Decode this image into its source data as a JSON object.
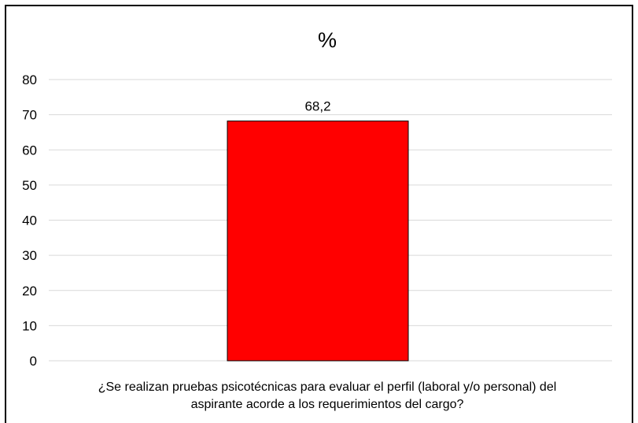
{
  "chart_data": {
    "type": "bar",
    "title": "%",
    "categories": [
      "¿Se realizan pruebas psicotécnicas para evaluar el perfil (laboral y/o personal) del aspirante acorde a los requerimientos del cargo?"
    ],
    "category_lines": [
      "¿Se realizan pruebas psicotécnicas para evaluar el perfil (laboral y/o personal) del",
      "aspirante acorde a los requerimientos del cargo?"
    ],
    "values": [
      68.2
    ],
    "data_labels": [
      "68,2"
    ],
    "yticks": [
      "0",
      "10",
      "20",
      "30",
      "40",
      "50",
      "60",
      "70",
      "80"
    ],
    "ylim": [
      0,
      80
    ],
    "grid": true,
    "legend": "none",
    "colors": {
      "bar": "#ff0000",
      "bar_border": "#000000",
      "grid": "#d9d9d9",
      "text": "#000000"
    }
  }
}
